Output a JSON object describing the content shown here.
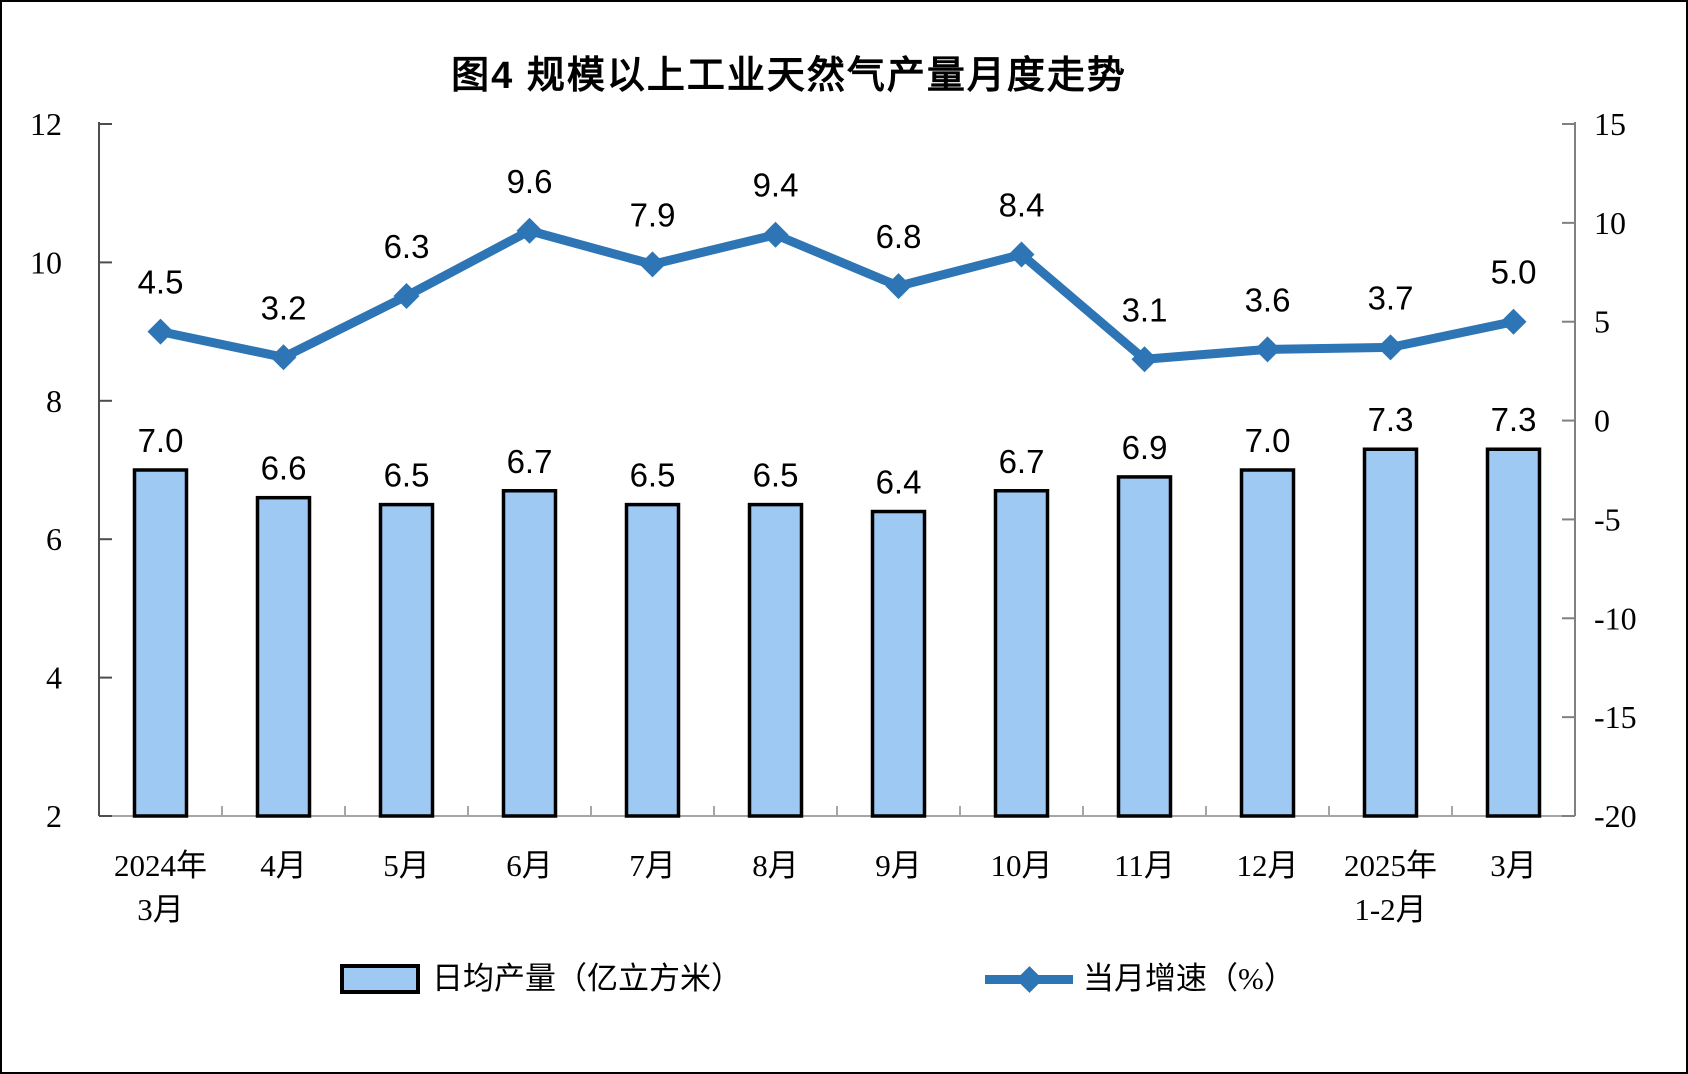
{
  "title": "图4 规模以上工业天然气产量月度走势",
  "chart_data": {
    "type": "bar+line combo",
    "categories": [
      [
        "2024年",
        "3月"
      ],
      [
        "4月"
      ],
      [
        "5月"
      ],
      [
        "6月"
      ],
      [
        "7月"
      ],
      [
        "8月"
      ],
      [
        "9月"
      ],
      [
        "10月"
      ],
      [
        "11月"
      ],
      [
        "12月"
      ],
      [
        "2025年",
        "1-2月"
      ],
      [
        "3月"
      ]
    ],
    "series": [
      {
        "name": "日均产量（亿立方米）",
        "type": "bar",
        "axis": "left",
        "values": [
          7.0,
          6.6,
          6.5,
          6.7,
          6.5,
          6.5,
          6.4,
          6.7,
          6.9,
          7.0,
          7.3,
          7.3
        ]
      },
      {
        "name": "当月增速（%）",
        "type": "line",
        "axis": "right",
        "values": [
          4.5,
          3.2,
          6.3,
          9.6,
          7.9,
          9.4,
          6.8,
          8.4,
          3.1,
          3.6,
          3.7,
          5.0
        ]
      }
    ],
    "left_axis": {
      "min": 2,
      "max": 12,
      "ticks": [
        12,
        10,
        8,
        6,
        4,
        2
      ]
    },
    "right_axis": {
      "min": -20,
      "max": 15,
      "ticks": [
        15,
        10,
        5,
        0,
        -5,
        -10,
        -15,
        -20
      ]
    },
    "value_label_decimals": 1,
    "grid": false,
    "legend_position": "bottom",
    "colors": {
      "bar_fill": "#9EC9F2",
      "bar_stroke": "#000000",
      "line": "#2E75B6",
      "left_axis_line": "#4D4D4D",
      "right_axis_line": "#808080",
      "bottom_axis_line": "#A6A6A6",
      "text": "#000000"
    }
  }
}
